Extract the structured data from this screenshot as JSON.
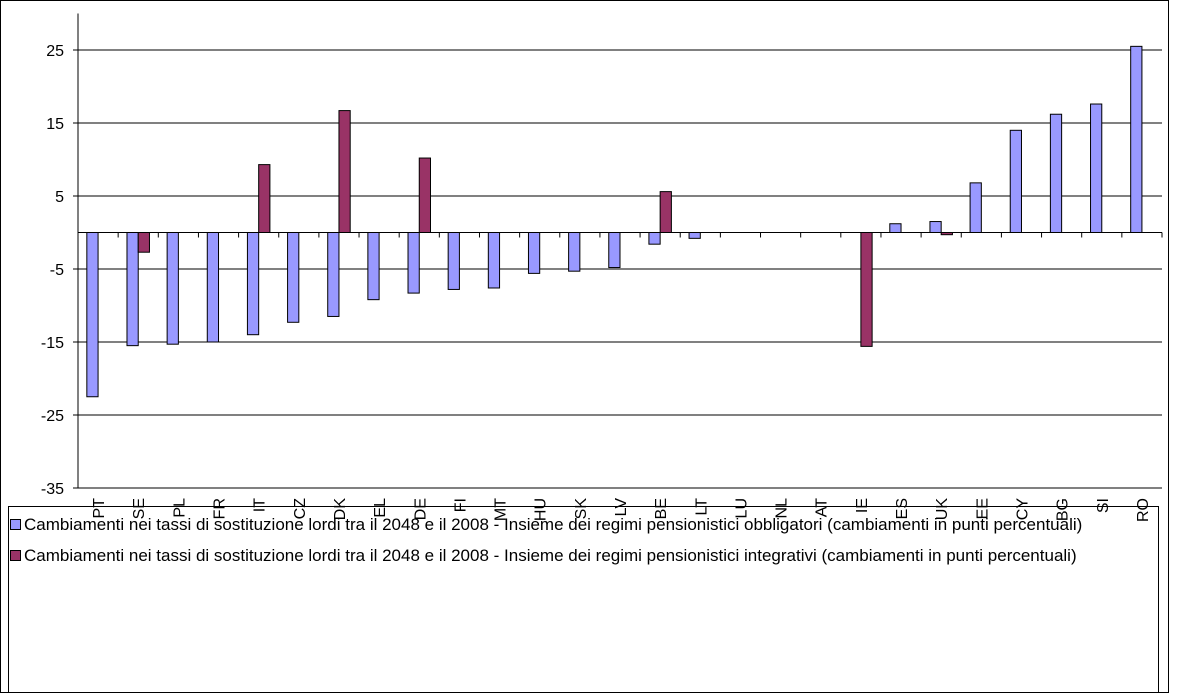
{
  "chart_data": {
    "type": "bar",
    "categories": [
      "PT",
      "SE",
      "PL",
      "FR",
      "IT",
      "CZ",
      "DK",
      "EL",
      "DE",
      "FI",
      "MT",
      "HU",
      "SK",
      "LV",
      "BE",
      "LT",
      "LU",
      "NL",
      "AT",
      "IE",
      "ES",
      "UK",
      "EE",
      "CY",
      "BG",
      "SI",
      "RO"
    ],
    "series": [
      {
        "name": "Cambiamenti nei tassi di sostituzione lordi tra il 2048 e il 2008 - Insieme dei regimi pensionistici obbligatori (cambiamenti in punti percentuali)",
        "color": "#9999ff",
        "values": [
          -22.5,
          -15.5,
          -15.3,
          -15,
          -14,
          -12.3,
          -11.5,
          -9.2,
          -8.3,
          -7.8,
          -7.6,
          -5.6,
          -5.3,
          -4.8,
          -1.6,
          -0.8,
          null,
          null,
          null,
          null,
          1.2,
          1.5,
          6.8,
          14,
          16.2,
          17.6,
          25.5
        ]
      },
      {
        "name": "Cambiamenti nei tassi di sostituzione lordi tra il 2048 e il 2008 - Insieme dei regimi pensionistici integrativi (cambiamenti in punti percentuali)",
        "color": "#993366",
        "values": [
          null,
          -2.7,
          null,
          null,
          9.3,
          null,
          16.7,
          null,
          10.2,
          null,
          null,
          null,
          null,
          null,
          5.6,
          null,
          null,
          null,
          null,
          -15.6,
          null,
          -0.3,
          null,
          null,
          null,
          null,
          null
        ]
      }
    ],
    "ylim": [
      -35,
      30
    ],
    "yticks": [
      -35,
      -25,
      -15,
      -5,
      5,
      15,
      25
    ],
    "grid": true
  }
}
